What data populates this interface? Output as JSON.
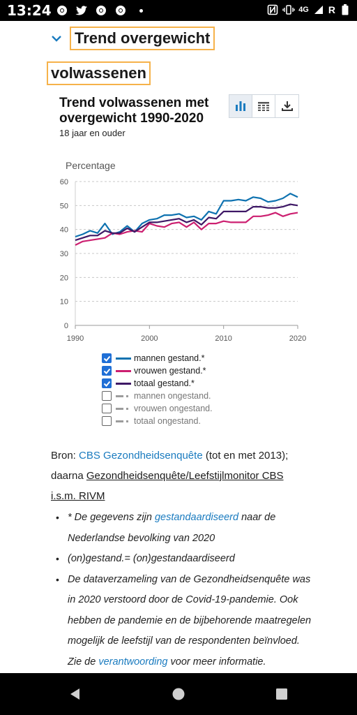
{
  "status_bar": {
    "time": "13:24",
    "network": "4G",
    "network_extra": "R",
    "icons": [
      "chrome-icon",
      "twitter-icon",
      "chrome-icon",
      "chrome-icon",
      "dot-icon",
      "nfc-icon",
      "vibrate-icon",
      "signal-icon",
      "battery-icon"
    ]
  },
  "section": {
    "heading_line1": "Trend overgewicht",
    "heading_line2": "volwassenen"
  },
  "chart": {
    "title": "Trend volwassenen met overgewicht 1990-2020",
    "subtitle": "18 jaar en ouder",
    "y_axis_title": "Percentage",
    "tool_icons": [
      "bar-chart-icon",
      "table-icon",
      "download-icon"
    ]
  },
  "chart_data": {
    "type": "line",
    "ylabel": "Percentage",
    "ylim": [
      0,
      60
    ],
    "xlim": [
      1990,
      2020
    ],
    "y_ticks": [
      "0",
      "10",
      "20",
      "30",
      "40",
      "50",
      "60"
    ],
    "x_ticks": [
      "1990",
      "2000",
      "2010",
      "2020"
    ],
    "grid": "horizontal dashed",
    "x": [
      1990,
      1991,
      1992,
      1993,
      1994,
      1995,
      1996,
      1997,
      1998,
      1999,
      2000,
      2001,
      2002,
      2003,
      2004,
      2005,
      2006,
      2007,
      2008,
      2009,
      2010,
      2011,
      2012,
      2013,
      2014,
      2015,
      2016,
      2017,
      2018,
      2019,
      2020
    ],
    "series": [
      {
        "name": "mannen gestand.*",
        "color": "#0e72b0",
        "values": [
          37.0,
          38.0,
          39.5,
          38.5,
          42.5,
          38.0,
          39.0,
          41.5,
          39.0,
          42.5,
          44.0,
          44.5,
          46.0,
          46.0,
          46.5,
          45.0,
          45.5,
          44.0,
          47.5,
          46.5,
          52.0,
          52.0,
          52.5,
          52.0,
          53.5,
          53.0,
          51.5,
          52.0,
          53.0,
          55.0,
          53.5
        ]
      },
      {
        "name": "vrouwen gestand.*",
        "color": "#cc1f70",
        "values": [
          33.5,
          35.0,
          35.5,
          36.0,
          36.5,
          38.5,
          38.0,
          39.0,
          39.5,
          39.0,
          42.5,
          41.5,
          41.0,
          42.5,
          43.0,
          41.0,
          43.0,
          40.0,
          42.5,
          42.5,
          43.5,
          43.0,
          43.0,
          43.0,
          45.5,
          45.5,
          46.0,
          47.0,
          45.5,
          46.5,
          47.0
        ]
      },
      {
        "name": "totaal gestand.*",
        "color": "#3e1866",
        "values": [
          35.5,
          36.5,
          37.5,
          37.5,
          39.5,
          38.5,
          38.5,
          40.5,
          39.0,
          41.0,
          43.0,
          43.0,
          43.5,
          44.0,
          44.5,
          43.0,
          44.0,
          42.0,
          45.0,
          44.5,
          47.5,
          47.5,
          47.5,
          47.5,
          49.5,
          49.5,
          49.0,
          49.0,
          49.5,
          50.5,
          50.0
        ]
      }
    ],
    "legend": [
      {
        "label": "mannen gestand.*",
        "checked": true,
        "color": "#0e72b0"
      },
      {
        "label": "vrouwen gestand.*",
        "checked": true,
        "color": "#cc1f70"
      },
      {
        "label": "totaal gestand.*",
        "checked": true,
        "color": "#3e1866"
      },
      {
        "label": "mannen ongestand.",
        "checked": false,
        "color": "#9c9c9c"
      },
      {
        "label": "vrouwen ongestand.",
        "checked": false,
        "color": "#9c9c9c"
      },
      {
        "label": "totaal ongestand.",
        "checked": false,
        "color": "#9c9c9c"
      }
    ]
  },
  "source": {
    "prefix": "Bron: ",
    "link1": "CBS Gezondheidsenquête",
    "mid": " (tot en met 2013); daarna ",
    "link2": "Gezondheidsenquête/Leefstijlmonitor CBS i.s.m. RIVM"
  },
  "notes": {
    "n1_a": "* De gegevens zijn ",
    "n1_link": "gestandaardiseerd",
    "n1_b": " naar de Nederlandse bevolking van 2020",
    "n2": "(on)gestand.= (on)gestandaardiseerd",
    "n3_a": "De dataverzameling van de Gezondheidsenquête was in 2020 verstoord door de Covid-19-pandemie. Ook hebben de pandemie en de bijbehorende maatregelen mogelijk de leefstijl van de respondenten beïnvloed. Zie de ",
    "n3_link": "verantwoording",
    "n3_b": " voor meer informatie."
  },
  "nav_bar": {
    "icons": [
      "back-icon",
      "home-icon",
      "recents-icon"
    ]
  }
}
